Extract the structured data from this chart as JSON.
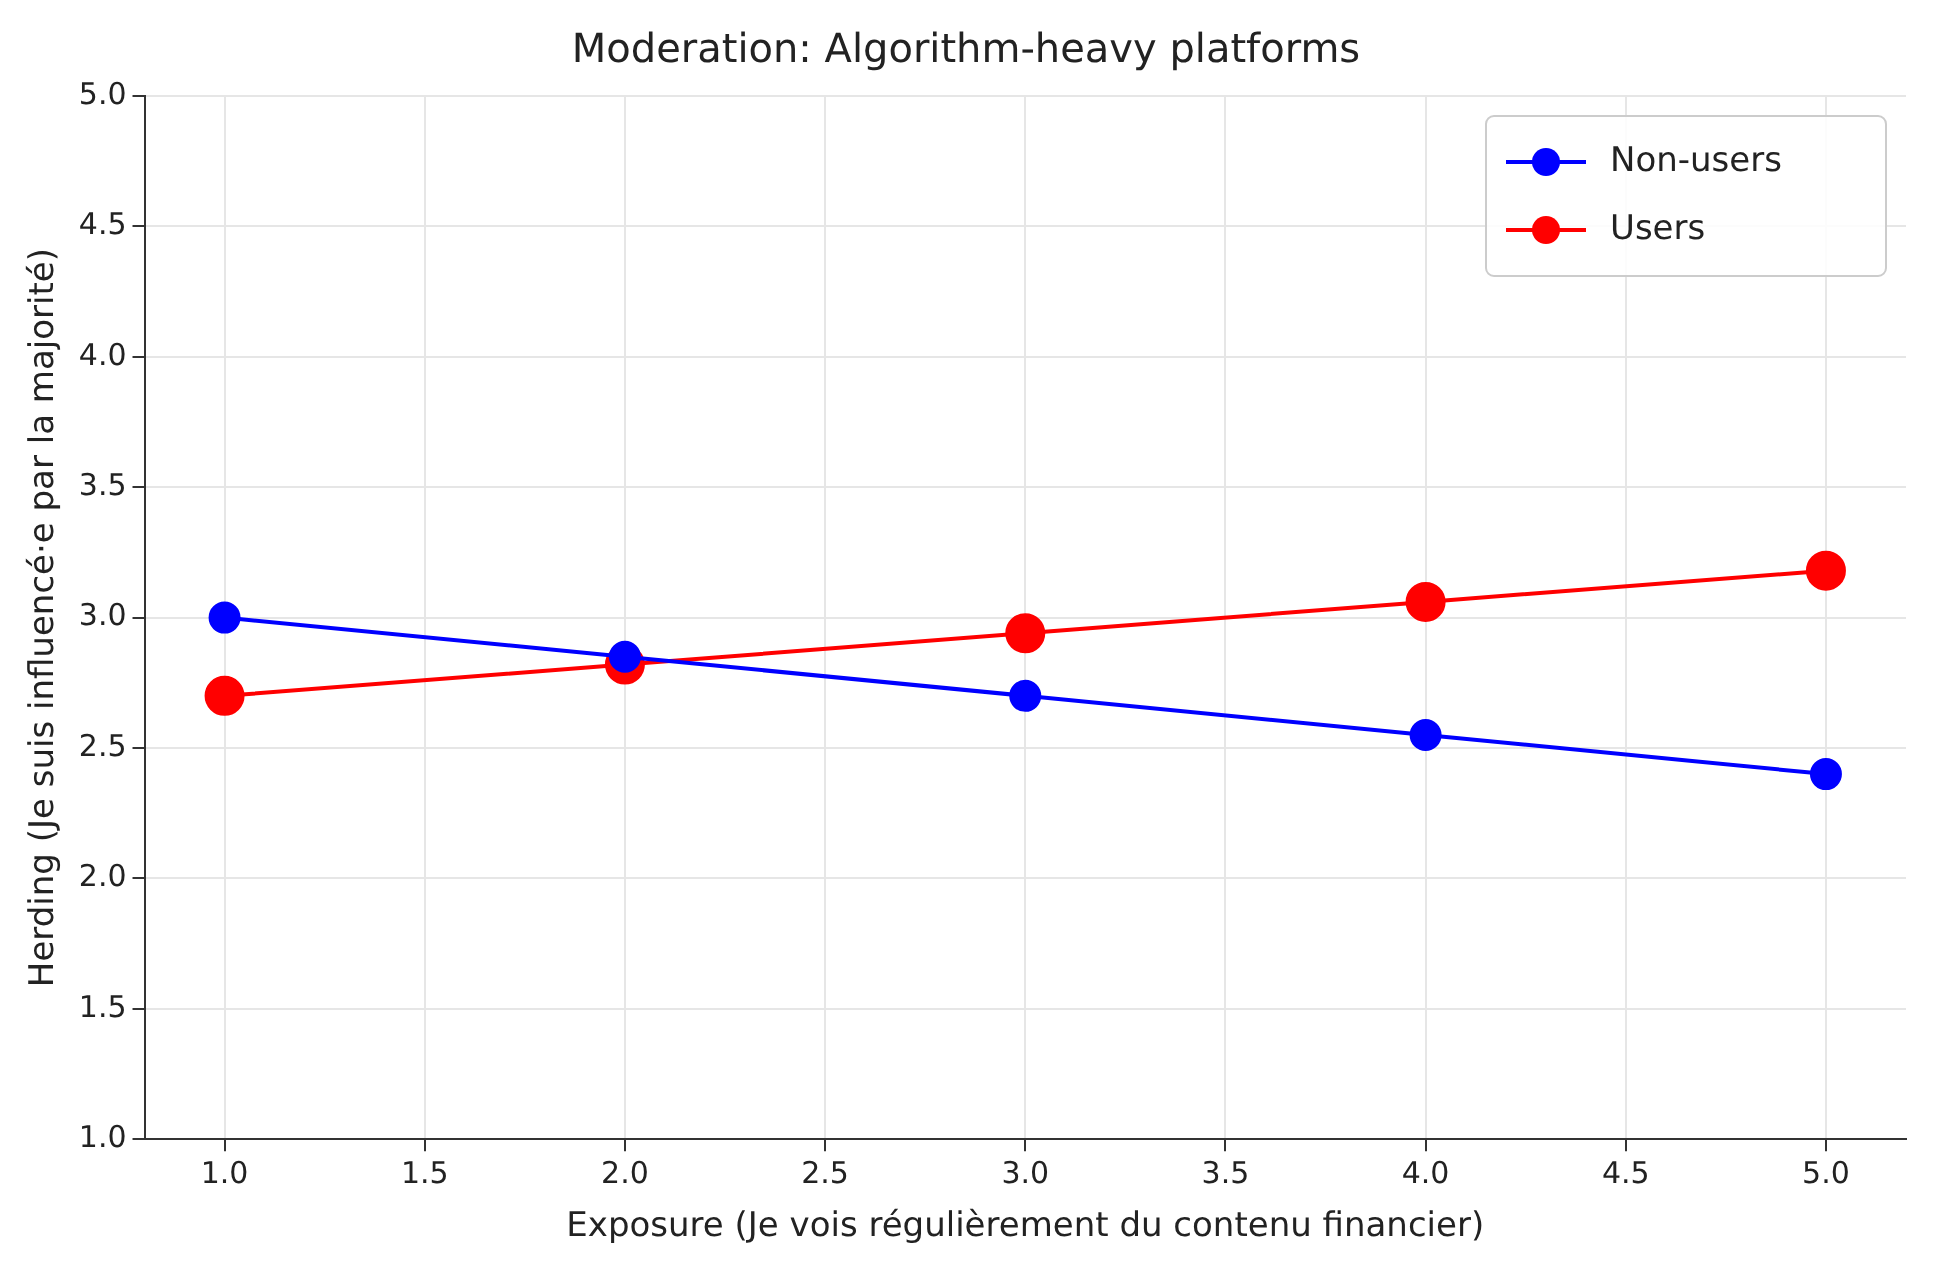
{
  "chart_data": {
    "type": "line",
    "title": "Moderation: Algorithm-heavy platforms",
    "xlabel": "Exposure (Je vois régulièrement du contenu financier)",
    "ylabel": "Herding (Je suis influencé·e par la majorité)",
    "x": [
      1,
      2,
      3,
      4,
      5
    ],
    "series": [
      {
        "name": "Non-users",
        "color": "#0000ff",
        "values": [
          3.0,
          2.85,
          2.7,
          2.55,
          2.4
        ]
      },
      {
        "name": "Users",
        "color": "#ff0000",
        "values": [
          2.7,
          2.82,
          2.94,
          3.06,
          3.18
        ]
      }
    ],
    "xlim": [
      0.8,
      5.2
    ],
    "xticks": [
      {
        "value": 1,
        "label": "1.0"
      },
      {
        "value": 1.5,
        "label": "1.5"
      },
      {
        "value": 2,
        "label": "2.0"
      },
      {
        "value": 2.5,
        "label": "2.5"
      },
      {
        "value": 3,
        "label": "3.0"
      },
      {
        "value": 3.5,
        "label": "3.5"
      },
      {
        "value": 4,
        "label": "4.0"
      },
      {
        "value": 4.5,
        "label": "4.5"
      },
      {
        "value": 5,
        "label": "5.0"
      }
    ],
    "ylim": [
      1,
      5
    ],
    "yticks": [
      {
        "value": 1,
        "label": "1.0"
      },
      {
        "value": 1.5,
        "label": "1.5"
      },
      {
        "value": 2,
        "label": "2.0"
      },
      {
        "value": 2.5,
        "label": "2.5"
      },
      {
        "value": 3,
        "label": "3.0"
      },
      {
        "value": 3.5,
        "label": "3.5"
      },
      {
        "value": 4,
        "label": "4.0"
      },
      {
        "value": 4.5,
        "label": "4.5"
      },
      {
        "value": 5,
        "label": "5.0"
      }
    ],
    "grid": true,
    "legend": "top right",
    "marker": "circle",
    "line_style": "solid"
  }
}
